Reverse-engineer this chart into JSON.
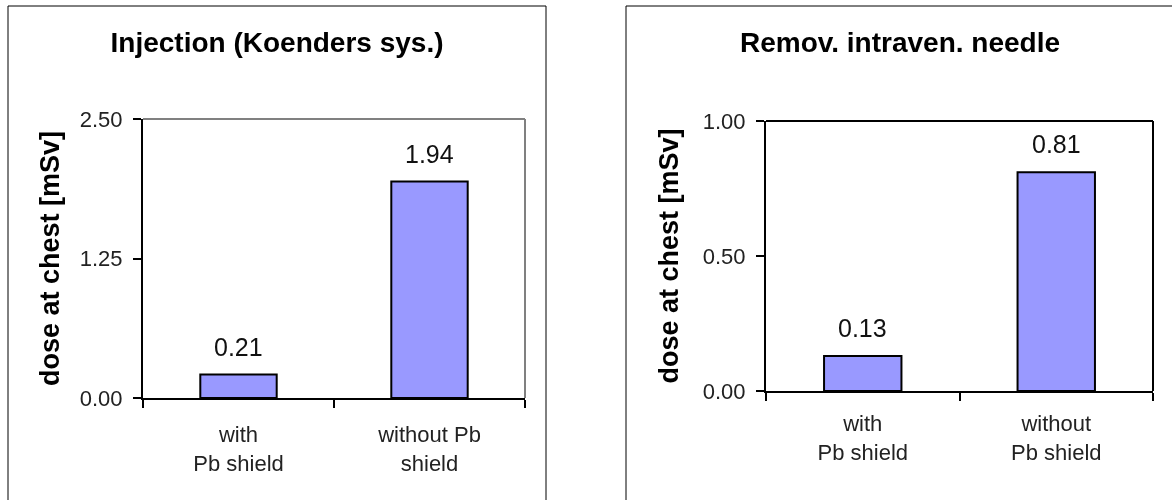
{
  "chart_data": [
    {
      "type": "bar",
      "title": "Injection (Koenders sys.)",
      "ylabel": "dose at chest [mSv]",
      "categories": [
        "with\nPb shield",
        "without Pb\nshield"
      ],
      "values": [
        0.21,
        1.94
      ],
      "color": "#9999ff",
      "ylim": [
        0,
        2.5
      ],
      "yticks": [
        {
          "value": 0,
          "label": "0.00"
        },
        1.25,
        {
          "value": 2.5,
          "label": "2.50"
        }
      ],
      "data_labels": true
    },
    {
      "type": "bar",
      "title": "Remov. intraven. needle",
      "ylabel": "dose at chest [mSv]",
      "categories": [
        "with\nPb shield",
        "without\nPb shield"
      ],
      "values": [
        0.13,
        0.81
      ],
      "color": "#9999ff",
      "ylim": [
        0,
        1
      ],
      "yticks": [
        {
          "value": 0,
          "label": "0.00"
        },
        {
          "value": 0.5,
          "label": "0.50"
        },
        {
          "value": 1,
          "label": "1.00"
        }
      ],
      "data_labels": true
    }
  ]
}
